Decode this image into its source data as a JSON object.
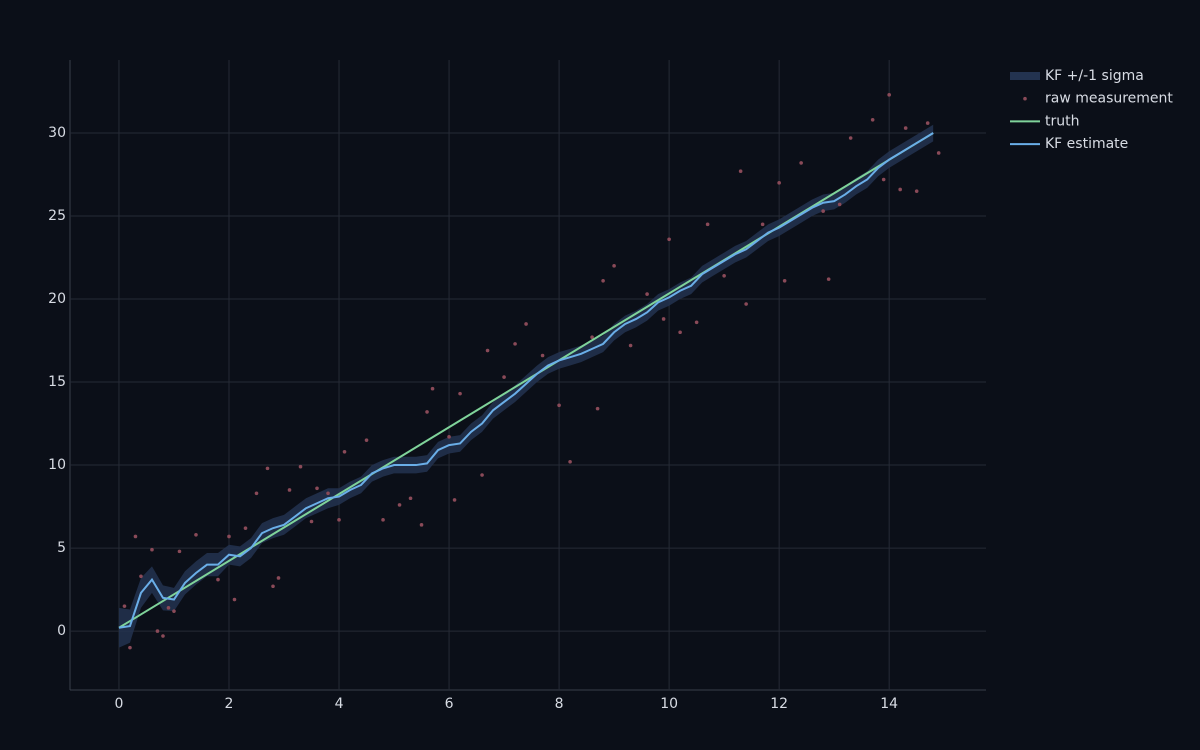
{
  "chart_data": {
    "type": "line",
    "xlim": [
      -0.89,
      15.76
    ],
    "ylim": [
      -3.55,
      34.4
    ],
    "xticks": [
      0,
      2,
      4,
      6,
      8,
      10,
      12,
      14
    ],
    "yticks": [
      0,
      5,
      10,
      15,
      20,
      25,
      30
    ],
    "grid": true,
    "legend": "top-right",
    "x": [
      0,
      0.2,
      0.4,
      0.6,
      0.8,
      1,
      1.2,
      1.4,
      1.6,
      1.8,
      2,
      2.2,
      2.4,
      2.6,
      2.8,
      3,
      3.2,
      3.4,
      3.6,
      3.8,
      4,
      4.2,
      4.4,
      4.6,
      4.8,
      5,
      5.2,
      5.4,
      5.6,
      5.8,
      6,
      6.2,
      6.4,
      6.6,
      6.8,
      7,
      7.2,
      7.4,
      7.6,
      7.8,
      8,
      8.2,
      8.4,
      8.6,
      8.8,
      9,
      9.2,
      9.4,
      9.6,
      9.8,
      10,
      10.2,
      10.4,
      10.6,
      10.8,
      11,
      11.2,
      11.4,
      11.6,
      11.8,
      12,
      12.2,
      12.4,
      12.6,
      12.8,
      13,
      13.2,
      13.4,
      13.6,
      13.8,
      14,
      14.2,
      14.4,
      14.6,
      14.8
    ],
    "series": [
      {
        "name": "KF +/-1 sigma",
        "kind": "band",
        "color": "#233350",
        "upper": [
          1.4,
          1.3,
          3.2,
          3.9,
          2.75,
          2.6,
          3.6,
          4.2,
          4.7,
          4.7,
          5.2,
          5.1,
          5.6,
          6.5,
          6.8,
          7.0,
          7.5,
          8.0,
          8.3,
          8.6,
          8.6,
          9.0,
          9.3,
          10.0,
          10.3,
          10.5,
          10.5,
          10.5,
          10.6,
          11.4,
          11.7,
          11.8,
          12.5,
          13.0,
          13.8,
          14.3,
          14.8,
          15.4,
          16.0,
          16.5,
          16.8,
          17.0,
          17.2,
          17.5,
          17.8,
          18.5,
          19.0,
          19.3,
          19.7,
          20.3,
          20.6,
          21.0,
          21.3,
          22.0,
          22.4,
          22.8,
          23.2,
          23.5,
          24.0,
          24.5,
          24.8,
          25.2,
          25.6,
          26.0,
          26.3,
          26.4,
          26.8,
          27.3,
          27.7,
          28.4,
          28.9,
          29.3,
          29.7,
          30.1,
          30.5
        ],
        "lower": [
          -1.0,
          -0.7,
          1.4,
          2.3,
          1.25,
          1.2,
          2.2,
          2.8,
          3.3,
          3.3,
          4.0,
          3.9,
          4.4,
          5.3,
          5.6,
          5.8,
          6.3,
          6.8,
          7.1,
          7.4,
          7.6,
          8.0,
          8.3,
          9.0,
          9.3,
          9.5,
          9.5,
          9.5,
          9.6,
          10.4,
          10.7,
          10.8,
          11.5,
          12.0,
          12.8,
          13.3,
          13.8,
          14.4,
          15.0,
          15.5,
          15.8,
          16.0,
          16.2,
          16.5,
          16.8,
          17.5,
          18.0,
          18.3,
          18.7,
          19.3,
          19.6,
          20.0,
          20.3,
          21.0,
          21.4,
          21.8,
          22.2,
          22.5,
          23.0,
          23.5,
          23.8,
          24.2,
          24.6,
          25.0,
          25.3,
          25.4,
          25.8,
          26.3,
          26.7,
          27.4,
          27.9,
          28.3,
          28.7,
          29.1,
          29.5
        ]
      },
      {
        "name": "raw measurement",
        "kind": "scatter",
        "color": "#8a4a58",
        "x": [
          0.1,
          0.2,
          0.3,
          0.4,
          0.6,
          0.7,
          0.8,
          0.9,
          1.0,
          1.1,
          1.4,
          1.8,
          2.0,
          2.1,
          2.3,
          2.5,
          2.7,
          2.8,
          2.9,
          3.1,
          3.3,
          3.5,
          3.6,
          3.8,
          4.0,
          4.1,
          4.5,
          4.8,
          5.1,
          5.3,
          5.5,
          5.6,
          5.7,
          6.0,
          6.1,
          6.2,
          6.6,
          6.7,
          7.0,
          7.2,
          7.4,
          7.7,
          8.0,
          8.2,
          8.6,
          8.7,
          8.8,
          9.0,
          9.3,
          9.6,
          9.9,
          10.0,
          10.2,
          10.5,
          10.7,
          11.0,
          11.3,
          11.4,
          11.7,
          12.0,
          12.1,
          12.4,
          12.8,
          12.9,
          13.1,
          13.3,
          13.7,
          13.9,
          14.0,
          14.2,
          14.3,
          14.5,
          14.7,
          14.9
        ],
        "values": [
          1.5,
          -1.0,
          5.7,
          3.3,
          4.9,
          0.0,
          -0.3,
          1.4,
          1.2,
          4.8,
          5.8,
          3.1,
          5.7,
          1.9,
          6.2,
          8.3,
          9.8,
          2.7,
          3.2,
          8.5,
          9.9,
          6.6,
          8.6,
          8.3,
          6.7,
          10.8,
          11.5,
          6.7,
          7.6,
          8.0,
          6.4,
          13.2,
          14.6,
          11.7,
          7.9,
          14.3,
          9.4,
          16.9,
          15.3,
          17.3,
          18.5,
          16.6,
          13.6,
          10.2,
          17.7,
          13.4,
          21.1,
          22.0,
          17.2,
          20.3,
          18.8,
          23.6,
          18.0,
          18.6,
          24.5,
          21.4,
          27.7,
          19.7,
          24.5,
          27.0,
          21.1,
          28.2,
          25.3,
          21.2,
          25.7,
          29.7,
          30.8,
          27.2,
          32.3,
          26.6,
          30.3,
          26.5,
          30.6,
          28.8
        ]
      },
      {
        "name": "truth",
        "kind": "line",
        "color": "#7fd39a",
        "x": [
          0,
          14.8
        ],
        "values": [
          0.2,
          30.0
        ]
      },
      {
        "name": "KF estimate",
        "kind": "line",
        "color": "#6aaee8",
        "values": [
          0.2,
          0.3,
          2.3,
          3.1,
          2.0,
          1.9,
          2.9,
          3.5,
          4.0,
          4.0,
          4.6,
          4.5,
          5.0,
          5.9,
          6.2,
          6.4,
          6.9,
          7.4,
          7.7,
          8.0,
          8.1,
          8.5,
          8.8,
          9.5,
          9.8,
          10.0,
          10.0,
          10.0,
          10.1,
          10.9,
          11.2,
          11.3,
          12.0,
          12.5,
          13.3,
          13.8,
          14.3,
          14.9,
          15.5,
          16.0,
          16.3,
          16.5,
          16.7,
          17.0,
          17.3,
          18.0,
          18.5,
          18.8,
          19.2,
          19.8,
          20.1,
          20.5,
          20.8,
          21.5,
          21.9,
          22.3,
          22.7,
          23.0,
          23.5,
          24.0,
          24.3,
          24.7,
          25.1,
          25.5,
          25.8,
          25.9,
          26.3,
          26.8,
          27.2,
          27.9,
          28.4,
          28.8,
          29.2,
          29.6,
          30.0
        ]
      }
    ]
  }
}
